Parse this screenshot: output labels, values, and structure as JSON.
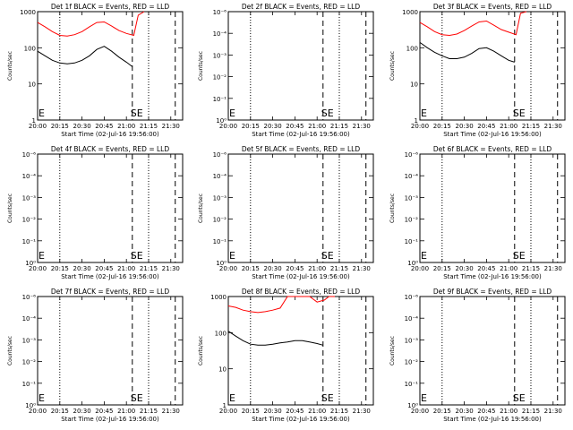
{
  "chart_data": [
    {
      "type": "line",
      "title": "Det 1f BLACK = Events, RED = LLD",
      "xlabel": "Start Time (02-Jul-16 19:56:00)",
      "ylabel": "Counts/sec",
      "scale": "log",
      "ylim": [
        1,
        1000
      ],
      "yticks": [
        "1000",
        "100",
        "10",
        "1"
      ],
      "xticks": [
        "20:00",
        "20:15",
        "20:30",
        "20:45",
        "21:00",
        "21:15",
        "21:30"
      ],
      "markers": [
        "E",
        "SE"
      ],
      "colors": {
        "events": "#000000",
        "lld": "#ff0000"
      },
      "series": [
        {
          "name": "BLACK = Events",
          "color": "#000000",
          "x": [
            "20:00",
            "20:05",
            "20:10",
            "20:15",
            "20:20",
            "20:25",
            "20:30",
            "20:35",
            "20:40",
            "20:45",
            "20:50",
            "20:55",
            "21:00",
            "21:04"
          ],
          "y": [
            80,
            60,
            45,
            38,
            36,
            38,
            45,
            60,
            90,
            110,
            80,
            55,
            40,
            30
          ]
        },
        {
          "name": "RED = LLD",
          "color": "#ff0000",
          "x": [
            "20:00",
            "20:05",
            "20:10",
            "20:15",
            "20:20",
            "20:25",
            "20:30",
            "20:35",
            "20:40",
            "20:45",
            "20:50",
            "20:55",
            "21:00",
            "21:05",
            "21:08",
            "21:12"
          ],
          "y": [
            500,
            380,
            280,
            220,
            210,
            230,
            280,
            380,
            500,
            520,
            400,
            300,
            250,
            220,
            800,
            1000
          ]
        }
      ]
    },
    {
      "type": "line",
      "title": "Det 2f BLACK = Events, RED = LLD",
      "xlabel": "Start Time (02-Jul-16 19:56:00)",
      "ylabel": "Counts/sec",
      "scale": "log",
      "ylim": [
        1e-06,
        1
      ],
      "yticks": [
        "10⁻⁶",
        "10⁻⁴",
        "10⁻³",
        "10⁻²",
        "10⁻¹",
        "10⁰"
      ],
      "xticks": [
        "20:00",
        "20:15",
        "20:30",
        "20:45",
        "21:00",
        "21:15",
        "21:30"
      ],
      "markers": [
        "E",
        "SE"
      ],
      "series": []
    },
    {
      "type": "line",
      "title": "Det 3f BLACK = Events, RED = LLD",
      "xlabel": "Start Time (02-Jul-16 19:56:00)",
      "ylabel": "Counts/sec",
      "scale": "log",
      "ylim": [
        1,
        1000
      ],
      "yticks": [
        "1000",
        "100",
        "10",
        "1"
      ],
      "xticks": [
        "20:00",
        "20:15",
        "20:30",
        "20:45",
        "21:00",
        "21:15",
        "21:30"
      ],
      "markers": [
        "E",
        "SE"
      ],
      "series": [
        {
          "name": "BLACK = Events",
          "color": "#000000",
          "x": [
            "20:00",
            "20:05",
            "20:10",
            "20:15",
            "20:20",
            "20:25",
            "20:30",
            "20:35",
            "20:40",
            "20:45",
            "20:50",
            "20:55",
            "21:00",
            "21:04"
          ],
          "y": [
            140,
            100,
            75,
            60,
            50,
            50,
            55,
            70,
            95,
            100,
            80,
            60,
            45,
            40
          ]
        },
        {
          "name": "RED = LLD",
          "color": "#ff0000",
          "x": [
            "20:00",
            "20:05",
            "20:10",
            "20:15",
            "20:20",
            "20:25",
            "20:30",
            "20:35",
            "20:40",
            "20:45",
            "20:50",
            "20:55",
            "21:00",
            "21:05",
            "21:08",
            "21:12"
          ],
          "y": [
            500,
            380,
            280,
            230,
            220,
            240,
            300,
            400,
            520,
            550,
            420,
            320,
            270,
            230,
            900,
            1000
          ]
        }
      ]
    },
    {
      "type": "line",
      "title": "Det 4f BLACK = Events, RED = LLD",
      "xlabel": "Start Time (02-Jul-16 19:56:00)",
      "ylabel": "Counts/sec",
      "scale": "log",
      "ylim": [
        1e-06,
        1
      ],
      "yticks": [
        "10⁻⁶",
        "10⁻⁴",
        "10⁻³",
        "10⁻²",
        "10⁻¹",
        "10⁰"
      ],
      "xticks": [
        "20:00",
        "20:15",
        "20:30",
        "20:45",
        "21:00",
        "21:15",
        "21:30"
      ],
      "markers": [
        "E",
        "SE"
      ],
      "series": []
    },
    {
      "type": "line",
      "title": "Det 5f BLACK = Events, RED = LLD",
      "xlabel": "Start Time (02-Jul-16 19:56:00)",
      "ylabel": "Counts/sec",
      "scale": "log",
      "ylim": [
        1e-06,
        1
      ],
      "yticks": [
        "10⁻⁶",
        "10⁻⁴",
        "10⁻³",
        "10⁻²",
        "10⁻¹",
        "10⁰"
      ],
      "xticks": [
        "20:00",
        "20:15",
        "20:30",
        "20:45",
        "21:00",
        "21:15",
        "21:30"
      ],
      "markers": [
        "E",
        "SE"
      ],
      "series": []
    },
    {
      "type": "line",
      "title": "Det 6f BLACK = Events, RED = LLD",
      "xlabel": "Start Time (02-Jul-16 19:56:00)",
      "ylabel": "Counts/sec",
      "scale": "log",
      "ylim": [
        1e-06,
        1
      ],
      "yticks": [
        "10⁻⁶",
        "10⁻⁴",
        "10⁻³",
        "10⁻²",
        "10⁻¹",
        "10⁰"
      ],
      "xticks": [
        "20:00",
        "20:15",
        "20:30",
        "20:45",
        "21:00",
        "21:15",
        "21:30"
      ],
      "markers": [
        "E",
        "SE"
      ],
      "series": []
    },
    {
      "type": "line",
      "title": "Det 7f BLACK = Events, RED = LLD",
      "xlabel": "Start Time (02-Jul-16 19:56:00)",
      "ylabel": "Counts/sec",
      "scale": "log",
      "ylim": [
        1e-06,
        1
      ],
      "yticks": [
        "10⁻⁶",
        "10⁻⁴",
        "10⁻³",
        "10⁻²",
        "10⁻¹",
        "10⁰"
      ],
      "xticks": [
        "20:00",
        "20:15",
        "20:30",
        "20:45",
        "21:00",
        "21:15",
        "21:30"
      ],
      "markers": [
        "E",
        "SE"
      ],
      "series": []
    },
    {
      "type": "line",
      "title": "Det 8f BLACK = Events, RED = LLD",
      "xlabel": "Start Time (02-Jul-16 19:56:00)",
      "ylabel": "Counts/sec",
      "scale": "log",
      "ylim": [
        1,
        1000
      ],
      "yticks": [
        "1000",
        "100",
        "10",
        "1"
      ],
      "xticks": [
        "20:00",
        "20:15",
        "20:30",
        "20:45",
        "21:00",
        "21:15",
        "21:30"
      ],
      "markers": [
        "E",
        "SE"
      ],
      "series": [
        {
          "name": "BLACK = Events",
          "color": "#000000",
          "x": [
            "20:00",
            "20:05",
            "20:10",
            "20:15",
            "20:20",
            "20:25",
            "20:30",
            "20:35",
            "20:40",
            "20:45",
            "20:50",
            "20:55",
            "21:00",
            "21:04"
          ],
          "y": [
            110,
            80,
            60,
            48,
            45,
            45,
            48,
            52,
            55,
            60,
            60,
            55,
            50,
            45
          ]
        },
        {
          "name": "RED = LLD",
          "color": "#ff0000",
          "x": [
            "20:00",
            "20:05",
            "20:10",
            "20:15",
            "20:20",
            "20:25",
            "20:30",
            "20:35",
            "20:40",
            "20:45",
            "20:50",
            "20:55",
            "21:00",
            "21:05",
            "21:08",
            "21:12"
          ],
          "y": [
            550,
            500,
            420,
            380,
            360,
            380,
            420,
            480,
            1000,
            1000,
            1000,
            1000,
            700,
            800,
            1000,
            1000
          ]
        }
      ]
    },
    {
      "type": "line",
      "title": "Det 9f BLACK = Events, RED = LLD",
      "xlabel": "Start Time (02-Jul-16 19:56:00)",
      "ylabel": "Counts/sec",
      "scale": "log",
      "ylim": [
        1e-06,
        1
      ],
      "yticks": [
        "10⁻⁶",
        "10⁻⁴",
        "10⁻³",
        "10⁻²",
        "10⁻¹",
        "10⁰"
      ],
      "xticks": [
        "20:00",
        "20:15",
        "20:30",
        "20:45",
        "21:00",
        "21:15",
        "21:30"
      ],
      "markers": [
        "E",
        "SE"
      ],
      "series": []
    }
  ]
}
